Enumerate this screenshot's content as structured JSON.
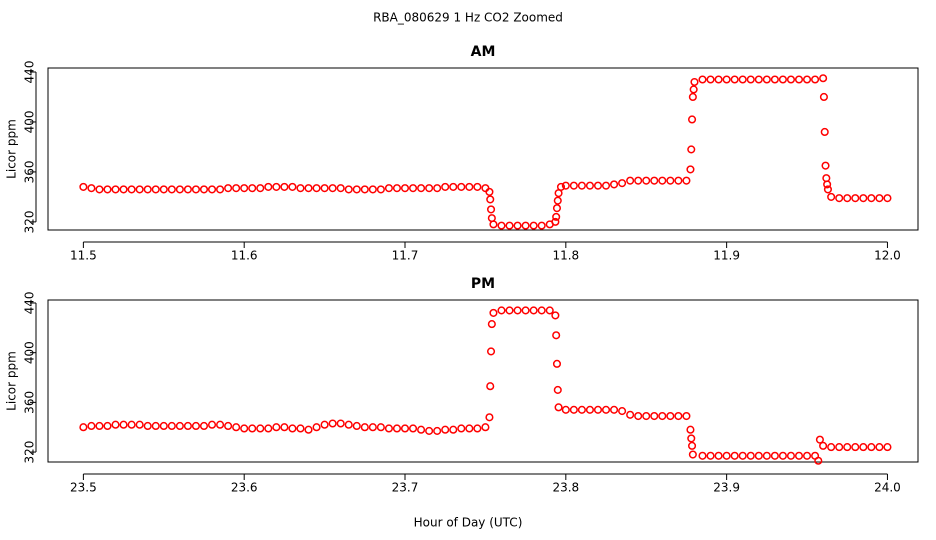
{
  "title": "RBA_080629  1 Hz CO2 Zoomed",
  "xlabel": "Hour of Day (UTC)",
  "chart_data": [
    {
      "type": "scatter",
      "title": "AM",
      "ylabel": "Licor ppm",
      "color": "#ff0000",
      "xlim": [
        11.478,
        12.019
      ],
      "ylim": [
        313.5,
        443.2
      ],
      "xticks": [
        11.5,
        11.6,
        11.7,
        11.8,
        11.9,
        {
          "value": 12,
          "label": "12.0"
        }
      ],
      "yticks": [
        320,
        360,
        400,
        440
      ],
      "x": [
        11.5,
        11.505,
        11.51,
        11.515,
        11.52,
        11.525,
        11.53,
        11.535,
        11.54,
        11.545,
        11.55,
        11.555,
        11.56,
        11.565,
        11.57,
        11.575,
        11.58,
        11.585,
        11.59,
        11.595,
        11.6,
        11.605,
        11.61,
        11.615,
        11.62,
        11.625,
        11.63,
        11.635,
        11.64,
        11.645,
        11.65,
        11.655,
        11.66,
        11.665,
        11.67,
        11.675,
        11.68,
        11.685,
        11.69,
        11.695,
        11.7,
        11.705,
        11.71,
        11.715,
        11.72,
        11.725,
        11.73,
        11.735,
        11.74,
        11.745,
        11.75,
        11.7525,
        11.753,
        11.7535,
        11.754,
        11.755,
        11.76,
        11.765,
        11.77,
        11.775,
        11.78,
        11.785,
        11.79,
        11.7935,
        11.794,
        11.7945,
        11.795,
        11.7955,
        11.797,
        11.8,
        11.805,
        11.81,
        11.815,
        11.82,
        11.825,
        11.83,
        11.835,
        11.84,
        11.845,
        11.85,
        11.855,
        11.86,
        11.865,
        11.87,
        11.875,
        11.8775,
        11.878,
        11.8785,
        11.879,
        11.8795,
        11.88,
        11.885,
        11.89,
        11.895,
        11.9,
        11.905,
        11.91,
        11.915,
        11.92,
        11.925,
        11.93,
        11.935,
        11.94,
        11.945,
        11.95,
        11.955,
        11.96,
        11.9605,
        11.961,
        11.9615,
        11.962,
        11.9625,
        11.963,
        11.965,
        11.97,
        11.975,
        11.98,
        11.985,
        11.99,
        11.995,
        12.0
      ],
      "values": [
        348,
        347,
        346,
        346,
        346,
        346,
        346,
        346,
        346,
        346,
        346,
        346,
        346,
        346,
        346,
        346,
        346,
        346,
        347,
        347,
        347,
        347,
        347,
        348,
        348,
        348,
        348,
        347,
        347,
        347,
        347,
        347,
        347,
        346,
        346,
        346,
        346,
        346,
        347,
        347,
        347,
        347,
        347,
        347,
        347,
        348,
        348,
        348,
        348,
        348,
        347,
        344,
        338,
        330,
        323,
        318,
        317,
        317,
        317,
        317,
        317,
        317,
        318,
        320,
        324,
        331,
        337,
        343,
        348,
        349,
        349,
        349,
        349,
        349,
        349,
        350,
        351,
        353,
        353,
        353,
        353,
        353,
        353,
        353,
        353,
        362,
        378,
        402,
        420,
        426,
        432,
        434,
        434,
        434,
        434,
        434,
        434,
        434,
        434,
        434,
        434,
        434,
        434,
        434,
        434,
        434,
        435,
        420,
        392,
        365,
        355,
        350,
        346,
        340,
        339,
        339,
        339,
        339,
        339,
        339,
        339
      ]
    },
    {
      "type": "scatter",
      "title": "PM",
      "ylabel": "Licor ppm",
      "color": "#ff0000",
      "xlim": [
        23.478,
        24.019
      ],
      "ylim": [
        312,
        442.4
      ],
      "xticks": [
        23.5,
        23.6,
        23.7,
        23.8,
        23.9,
        {
          "value": 24,
          "label": "24.0"
        }
      ],
      "yticks": [
        320,
        360,
        400,
        440
      ],
      "x": [
        23.5,
        23.505,
        23.51,
        23.515,
        23.52,
        23.525,
        23.53,
        23.535,
        23.54,
        23.545,
        23.55,
        23.555,
        23.56,
        23.565,
        23.57,
        23.575,
        23.58,
        23.585,
        23.59,
        23.595,
        23.6,
        23.605,
        23.61,
        23.615,
        23.62,
        23.625,
        23.63,
        23.635,
        23.64,
        23.645,
        23.65,
        23.655,
        23.66,
        23.665,
        23.67,
        23.675,
        23.68,
        23.685,
        23.69,
        23.695,
        23.7,
        23.705,
        23.71,
        23.715,
        23.72,
        23.725,
        23.73,
        23.735,
        23.74,
        23.745,
        23.75,
        23.7525,
        23.753,
        23.7535,
        23.754,
        23.755,
        23.76,
        23.765,
        23.77,
        23.775,
        23.78,
        23.785,
        23.79,
        23.7935,
        23.794,
        23.7945,
        23.795,
        23.7955,
        23.8,
        23.805,
        23.81,
        23.815,
        23.82,
        23.825,
        23.83,
        23.835,
        23.84,
        23.845,
        23.85,
        23.855,
        23.86,
        23.865,
        23.87,
        23.875,
        23.8775,
        23.878,
        23.8785,
        23.879,
        23.885,
        23.89,
        23.895,
        23.9,
        23.905,
        23.91,
        23.915,
        23.92,
        23.925,
        23.93,
        23.935,
        23.94,
        23.945,
        23.95,
        23.955,
        23.957,
        23.958,
        23.96,
        23.965,
        23.97,
        23.975,
        23.98,
        23.985,
        23.99,
        23.995,
        24.0
      ],
      "values": [
        340,
        341,
        341,
        341,
        342,
        342,
        342,
        342,
        341,
        341,
        341,
        341,
        341,
        341,
        341,
        341,
        342,
        342,
        341,
        340,
        339,
        339,
        339,
        339,
        340,
        340,
        339,
        339,
        338,
        340,
        342,
        343,
        343,
        342,
        341,
        340,
        340,
        340,
        339,
        339,
        339,
        339,
        338,
        337,
        337,
        338,
        338,
        339,
        339,
        339,
        340,
        348,
        373,
        401,
        423,
        432,
        434,
        434,
        434,
        434,
        434,
        434,
        434,
        430,
        414,
        391,
        370,
        356,
        354,
        354,
        354,
        354,
        354,
        354,
        354,
        353,
        350,
        349,
        349,
        349,
        349,
        349,
        349,
        349,
        338,
        331,
        325,
        318,
        317,
        317,
        317,
        317,
        317,
        317,
        317,
        317,
        317,
        317,
        317,
        317,
        317,
        317,
        317,
        313,
        330,
        325,
        324,
        324,
        324,
        324,
        324,
        324,
        324,
        324
      ]
    }
  ]
}
